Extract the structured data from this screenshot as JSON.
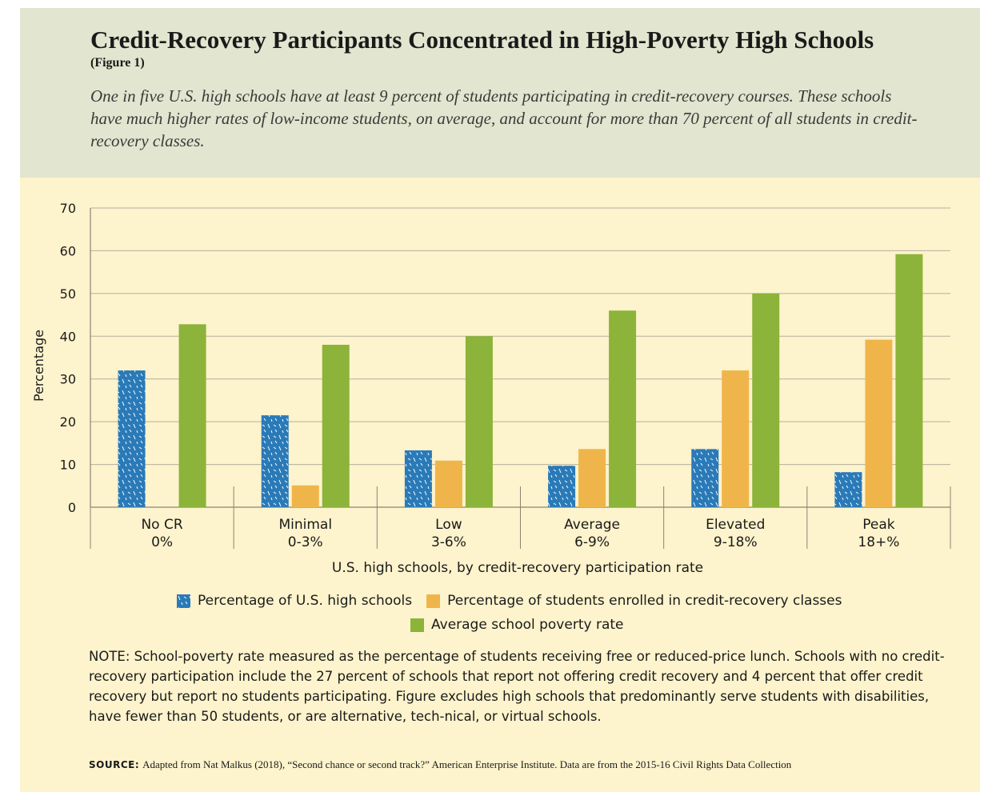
{
  "header": {
    "title": "Credit-Recovery Participants Concentrated in High-Poverty High Schools",
    "figure_label": "(Figure 1)",
    "subtitle": "One in five U.S. high schools have at least 9 percent of students participating in credit-recovery courses. These schools have much higher rates of low-income students, on average, and account for more than 70 percent of all students in credit-recovery classes."
  },
  "chart_data": {
    "type": "bar",
    "ylabel": "Percentage",
    "xlabel": "U.S. high schools, by credit-recovery participation rate",
    "ylim": [
      0,
      70
    ],
    "yticks": [
      0,
      10,
      20,
      30,
      40,
      50,
      60,
      70
    ],
    "grid": true,
    "categories": [
      {
        "name": "No CR",
        "range": "0%"
      },
      {
        "name": "Minimal",
        "range": "0-3%"
      },
      {
        "name": "Low",
        "range": "3-6%"
      },
      {
        "name": "Average",
        "range": "6-9%"
      },
      {
        "name": "Elevated",
        "range": "9-18%"
      },
      {
        "name": "Peak",
        "range": "18+%"
      }
    ],
    "series": [
      {
        "name": "Percentage of U.S. high schools",
        "color": "#2a7ab8",
        "pattern": "speckled",
        "values": [
          32,
          21.5,
          13.3,
          9.7,
          13.6,
          8.2
        ]
      },
      {
        "name": "Percentage of students enrolled in credit-recovery classes",
        "color": "#f0b54a",
        "values": [
          0,
          5.1,
          10.9,
          13.6,
          32,
          39.2
        ]
      },
      {
        "name": "Average school poverty rate",
        "color": "#8cb33a",
        "values": [
          42.8,
          38,
          40,
          46,
          50,
          59.2
        ]
      }
    ],
    "legend_position": "bottom"
  },
  "note": "NOTE: School-poverty rate measured as the percentage of students receiving free or reduced-price lunch. Schools with no credit-recovery participation include the 27 percent of schools that report not offering credit recovery and 4 percent that offer credit recovery but report no students participating. Figure excludes high schools that predominantly serve students with disabilities, have fewer than 50 students, or are alternative, tech-nical, or virtual schools.",
  "source": {
    "label": "SOURCE:",
    "text": "Adapted from Nat Malkus (2018), “Second chance or second track?” American Enterprise Institute. Data are from the 2015-16 Civil Rights Data Collection"
  }
}
